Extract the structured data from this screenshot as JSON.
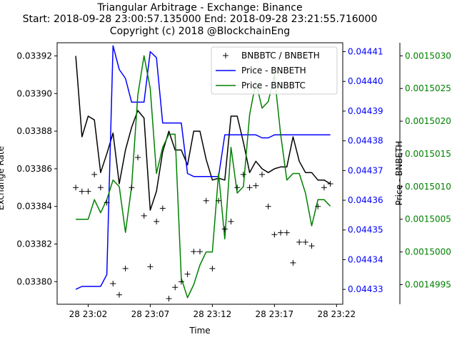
{
  "chart_data": {
    "type": "line",
    "title": "Triangular Arbitrage - Exchange: Binance",
    "subtitle": "Start: 2018-09-28 23:00:57.135000 End: 2018-09-28 23:21:55.716000",
    "copyright": "Copyright (c) 2018 @BlockchainEng",
    "xlabel": "Time",
    "ylabel_left": "Exchange Rate",
    "ylabel_right": "Price - BNBETH",
    "colors": {
      "black": "#000000",
      "blue": "#0000ff",
      "green": "#008000"
    },
    "x_ticks": [
      "28 23:02",
      "28 23:07",
      "28 23:12",
      "28 23:17",
      "28 23:22"
    ],
    "x_tick_minutes": [
      1.0,
      6.0,
      11.0,
      16.0,
      21.0
    ],
    "y_left": {
      "ticks": [
        "0.03380",
        "0.03382",
        "0.03384",
        "0.03386",
        "0.03388",
        "0.03390",
        "0.03392"
      ],
      "tick_values": [
        0.0338,
        0.03382,
        0.03384,
        0.03386,
        0.03388,
        0.0339,
        0.03392
      ],
      "range": [
        0.033788,
        0.033927
      ]
    },
    "y_right_blue": {
      "ticks": [
        "0.04433",
        "0.04434",
        "0.04435",
        "0.04436",
        "0.04437",
        "0.04438",
        "0.04439",
        "0.04440",
        "0.04441"
      ],
      "tick_values": [
        0.04433,
        0.04434,
        0.04435,
        0.04436,
        0.04437,
        0.04438,
        0.04439,
        0.0444,
        0.04441
      ],
      "range": [
        0.044325,
        0.044413
      ]
    },
    "y_right_green": {
      "ticks": [
        "0.0014995",
        "0.0015000",
        "0.0015005",
        "0.0015010",
        "0.0015015",
        "0.0015020",
        "0.0015025",
        "0.0015030"
      ],
      "tick_values": [
        0.0014995,
        0.0015,
        0.0015005,
        0.001501,
        0.0015015,
        0.001502,
        0.0015025,
        0.001503
      ],
      "range": [
        0.0014992,
        0.0015032
      ]
    },
    "legend": [
      "BNBBTC / BNBETH",
      "Price - BNBETH",
      "Price - BNBBTC"
    ],
    "legend_position": "upper right",
    "series": [
      {
        "name": "BNBBTC / BNBETH",
        "style": "markers-plus",
        "x_minutes": [
          0.0,
          0.5,
          1.0,
          1.5,
          2.0,
          2.5,
          3.0,
          3.5,
          4.0,
          4.5,
          5.0,
          5.5,
          6.0,
          6.5,
          7.0,
          7.5,
          8.0,
          8.5,
          9.0,
          9.5,
          10.0,
          10.5,
          11.0,
          11.5,
          12.0,
          12.5,
          13.0,
          13.5,
          14.0,
          14.5,
          15.0,
          15.5,
          16.0,
          16.5,
          17.0,
          17.5,
          18.0,
          18.5,
          19.0,
          19.5,
          20.0,
          20.5
        ],
        "values": [
          0.03385,
          0.033848,
          0.033848,
          0.033857,
          0.03385,
          0.033842,
          0.033799,
          0.033793,
          0.033807,
          0.03385,
          0.033866,
          0.033835,
          0.033808,
          0.033832,
          0.033839,
          0.033791,
          0.033797,
          0.0338,
          0.033804,
          0.033816,
          0.033816,
          0.033843,
          0.033807,
          0.033843,
          0.033828,
          0.033832,
          0.03385,
          0.033857,
          0.03385,
          0.033851,
          0.033857,
          0.03384,
          0.033825,
          0.033826,
          0.033826,
          0.03381,
          0.033821,
          0.033821,
          0.033819,
          0.03384,
          0.03385,
          0.033852
        ]
      },
      {
        "name": "BNBBTC / BNBETH line",
        "style": "line-black",
        "x_minutes": [
          0.0,
          0.5,
          1.0,
          1.5,
          2.0,
          2.5,
          3.0,
          3.5,
          4.0,
          4.5,
          5.0,
          5.5,
          6.0,
          6.5,
          7.0,
          7.5,
          8.0,
          8.5,
          9.0,
          9.5,
          10.0,
          10.5,
          11.0,
          11.5,
          12.0,
          12.5,
          13.0,
          13.5,
          14.0,
          14.5,
          15.0,
          15.5,
          16.0,
          16.5,
          17.0,
          17.5,
          18.0,
          18.5,
          19.0,
          19.5,
          20.0,
          20.5
        ],
        "values": [
          0.03392,
          0.033877,
          0.033888,
          0.033886,
          0.033858,
          0.033868,
          0.033879,
          0.033852,
          0.03387,
          0.033882,
          0.033891,
          0.033887,
          0.033838,
          0.033848,
          0.033869,
          0.03388,
          0.03387,
          0.03387,
          0.033862,
          0.03388,
          0.03388,
          0.033865,
          0.033854,
          0.033855,
          0.033854,
          0.033888,
          0.033888,
          0.033874,
          0.033858,
          0.033864,
          0.03386,
          0.033858,
          0.03386,
          0.033861,
          0.033861,
          0.033877,
          0.033864,
          0.033858,
          0.033858,
          0.033854,
          0.033854,
          0.033852
        ]
      },
      {
        "name": "Price - BNBETH",
        "style": "line-blue",
        "x_minutes": [
          0.0,
          0.5,
          1.0,
          1.5,
          2.0,
          2.5,
          3.0,
          3.5,
          4.0,
          4.5,
          5.0,
          5.5,
          6.0,
          6.5,
          7.0,
          7.5,
          8.0,
          8.5,
          9.0,
          9.5,
          10.0,
          10.5,
          11.0,
          11.5,
          12.0,
          12.5,
          13.0,
          13.5,
          14.0,
          14.5,
          15.0,
          15.5,
          16.0,
          16.5,
          17.0,
          17.5,
          18.0,
          18.5,
          19.0,
          19.5,
          20.0,
          20.5
        ],
        "values": [
          0.04433,
          0.044331,
          0.044331,
          0.044331,
          0.044331,
          0.044335,
          0.044412,
          0.044404,
          0.044401,
          0.044393,
          0.044393,
          0.044393,
          0.04441,
          0.044408,
          0.044386,
          0.044386,
          0.044386,
          0.044386,
          0.044369,
          0.044368,
          0.044368,
          0.044368,
          0.044368,
          0.044368,
          0.044382,
          0.044382,
          0.044382,
          0.044382,
          0.044382,
          0.044382,
          0.044381,
          0.044381,
          0.044382,
          0.044382,
          0.044382,
          0.044382,
          0.044382,
          0.044382,
          0.044382,
          0.044382,
          0.044382,
          0.044382
        ]
      },
      {
        "name": "Price - BNBBTC",
        "style": "line-green",
        "x_minutes": [
          0.0,
          0.5,
          1.0,
          1.5,
          2.0,
          2.5,
          3.0,
          3.5,
          4.0,
          4.5,
          5.0,
          5.5,
          6.0,
          6.5,
          7.0,
          7.5,
          8.0,
          8.5,
          9.0,
          9.5,
          10.0,
          10.5,
          11.0,
          11.5,
          12.0,
          12.5,
          13.0,
          13.5,
          14.0,
          14.5,
          15.0,
          15.5,
          16.0,
          16.5,
          17.0,
          17.5,
          18.0,
          18.5,
          19.0,
          19.5,
          20.0,
          20.5
        ],
        "values": [
          0.0015005,
          0.0015005,
          0.0015005,
          0.0015008,
          0.0015006,
          0.0015008,
          0.0015011,
          0.001501,
          0.0015003,
          0.001501,
          0.0015024,
          0.001503,
          0.0015025,
          0.0015012,
          0.0015016,
          0.0015018,
          0.0015018,
          0.0014996,
          0.0014993,
          0.0014995,
          0.0014998,
          0.0015,
          0.0015,
          0.0015012,
          0.0015002,
          0.0015016,
          0.0015009,
          0.001501,
          0.0015021,
          0.0015026,
          0.0015022,
          0.0015023,
          0.0015027,
          0.0015018,
          0.0015011,
          0.0015012,
          0.0015012,
          0.0015009,
          0.0015004,
          0.0015008,
          0.0015008,
          0.0015007
        ]
      }
    ]
  }
}
